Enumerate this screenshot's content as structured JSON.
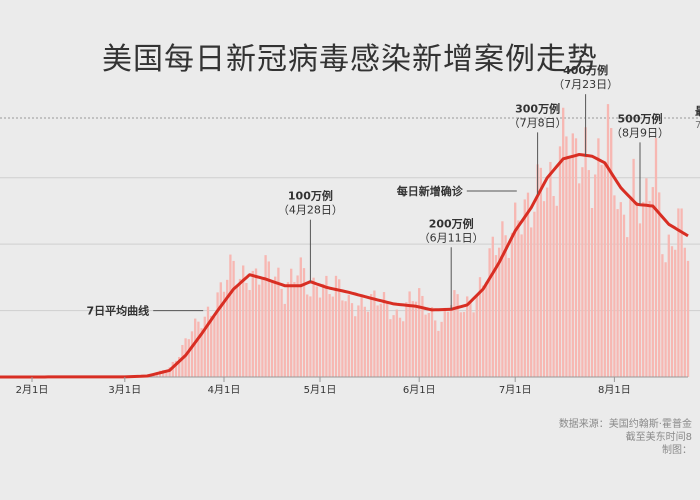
{
  "title": "美国每日新冠病毒感染新增案例走势",
  "source": {
    "line1": "数据来源：美国约翰斯·霍普金",
    "line2": "截至美东时间8",
    "line3": "制图："
  },
  "colors": {
    "bars": "#f7b7b2",
    "line": "#d82e23",
    "grid": "#cfcfcf",
    "text": "#333333",
    "callout": "#555555"
  },
  "chart_data": {
    "type": "bar",
    "title": "美国每日新冠病毒感染新增案例走势",
    "x_tick_labels": [
      "2月1日",
      "3月1日",
      "4月1日",
      "5月1日",
      "6月1日",
      "7月1日",
      "8月1日"
    ],
    "x_tick_dates": [
      "2020-02-01",
      "2020-03-01",
      "2020-04-01",
      "2020-05-01",
      "2020-06-01",
      "2020-07-01",
      "2020-08-01"
    ],
    "x_range": [
      "2020-01-22",
      "2020-08-24"
    ],
    "ylim": [
      0,
      78000
    ],
    "gridlines": [
      20000,
      40000,
      60000,
      78000
    ],
    "top_gridline_label": "最",
    "top_gridline_sublabel": "7",
    "series": [
      {
        "kind": "bar",
        "note": "daily new cases (anchor points, dense daily bars between)",
        "points": [
          [
            "2020-01-22",
            0
          ],
          [
            "2020-02-28",
            20
          ],
          [
            "2020-03-05",
            150
          ],
          [
            "2020-03-10",
            700
          ],
          [
            "2020-03-15",
            3000
          ],
          [
            "2020-03-18",
            7000
          ],
          [
            "2020-03-21",
            12000
          ],
          [
            "2020-03-24",
            16000
          ],
          [
            "2020-03-27",
            20000
          ],
          [
            "2020-03-30",
            24000
          ],
          [
            "2020-04-02",
            29000
          ],
          [
            "2020-04-04",
            32000
          ],
          [
            "2020-04-06",
            30000
          ],
          [
            "2020-04-09",
            33000
          ],
          [
            "2020-04-11",
            30000
          ],
          [
            "2020-04-16",
            31000
          ],
          [
            "2020-04-20",
            28000
          ],
          [
            "2020-04-24",
            33000
          ],
          [
            "2020-04-28",
            24000
          ],
          [
            "2020-05-01",
            30000
          ],
          [
            "2020-05-06",
            27000
          ],
          [
            "2020-05-10",
            21000
          ],
          [
            "2020-05-15",
            24000
          ],
          [
            "2020-05-20",
            22000
          ],
          [
            "2020-05-25",
            19000
          ],
          [
            "2020-05-30",
            24000
          ],
          [
            "2020-06-04",
            20000
          ],
          [
            "2020-06-08",
            17000
          ],
          [
            "2020-06-11",
            23000
          ],
          [
            "2020-06-15",
            20000
          ],
          [
            "2020-06-20",
            28000
          ],
          [
            "2020-06-25",
            38000
          ],
          [
            "2020-06-28",
            42000
          ],
          [
            "2020-07-02",
            52000
          ],
          [
            "2020-07-06",
            46000
          ],
          [
            "2020-07-10",
            63000
          ],
          [
            "2020-07-13",
            60000
          ],
          [
            "2020-07-17",
            74000
          ],
          [
            "2020-07-19",
            62000
          ],
          [
            "2020-07-23",
            70000
          ],
          [
            "2020-07-26",
            62000
          ],
          [
            "2020-07-30",
            70000
          ],
          [
            "2020-08-03",
            48000
          ],
          [
            "2020-08-07",
            60000
          ],
          [
            "2020-08-10",
            46000
          ],
          [
            "2020-08-14",
            64000
          ],
          [
            "2020-08-17",
            38000
          ],
          [
            "2020-08-21",
            46000
          ],
          [
            "2020-08-24",
            36000
          ]
        ]
      },
      {
        "kind": "line",
        "note": "7-day average",
        "points": [
          [
            "2020-01-22",
            0
          ],
          [
            "2020-03-01",
            40
          ],
          [
            "2020-03-08",
            300
          ],
          [
            "2020-03-15",
            2000
          ],
          [
            "2020-03-20",
            6500
          ],
          [
            "2020-03-25",
            13000
          ],
          [
            "2020-03-30",
            20000
          ],
          [
            "2020-04-04",
            26500
          ],
          [
            "2020-04-09",
            30800
          ],
          [
            "2020-04-14",
            29500
          ],
          [
            "2020-04-20",
            27500
          ],
          [
            "2020-04-25",
            27500
          ],
          [
            "2020-04-28",
            28700
          ],
          [
            "2020-05-03",
            27000
          ],
          [
            "2020-05-10",
            25500
          ],
          [
            "2020-05-17",
            23700
          ],
          [
            "2020-05-24",
            22000
          ],
          [
            "2020-05-31",
            21300
          ],
          [
            "2020-06-05",
            20200
          ],
          [
            "2020-06-11",
            20400
          ],
          [
            "2020-06-16",
            21700
          ],
          [
            "2020-06-21",
            26500
          ],
          [
            "2020-06-26",
            34500
          ],
          [
            "2020-07-01",
            44000
          ],
          [
            "2020-07-06",
            51000
          ],
          [
            "2020-07-11",
            60000
          ],
          [
            "2020-07-16",
            65700
          ],
          [
            "2020-07-21",
            67000
          ],
          [
            "2020-07-25",
            66500
          ],
          [
            "2020-07-29",
            64500
          ],
          [
            "2020-08-03",
            57000
          ],
          [
            "2020-08-08",
            52000
          ],
          [
            "2020-08-13",
            51500
          ],
          [
            "2020-08-18",
            46000
          ],
          [
            "2020-08-24",
            42500
          ]
        ]
      }
    ],
    "annotations": [
      {
        "line1": "7日平均曲线",
        "line2": "",
        "x": "2020-03-28",
        "y": 20000,
        "kind": "left-label"
      },
      {
        "line1": "100万例",
        "line2": "（4月28日）",
        "x": "2020-04-28",
        "y": 28700,
        "kind": "milestone"
      },
      {
        "line1": "200万例",
        "line2": "（6月11日）",
        "x": "2020-06-11",
        "y": 20400,
        "kind": "milestone"
      },
      {
        "line1": "每日新增确诊",
        "line2": "",
        "x": "2020-07-04",
        "y": 56000,
        "kind": "left-label"
      },
      {
        "line1": "300万例",
        "line2": "（7月8日）",
        "x": "2020-07-08",
        "y": 55000,
        "kind": "milestone"
      },
      {
        "line1": "400万例",
        "line2": "（7月23日）",
        "x": "2020-07-23",
        "y": 66500,
        "kind": "milestone"
      },
      {
        "line1": "500万例",
        "line2": "（8月9日）",
        "x": "2020-08-09",
        "y": 52000,
        "kind": "milestone"
      }
    ]
  }
}
